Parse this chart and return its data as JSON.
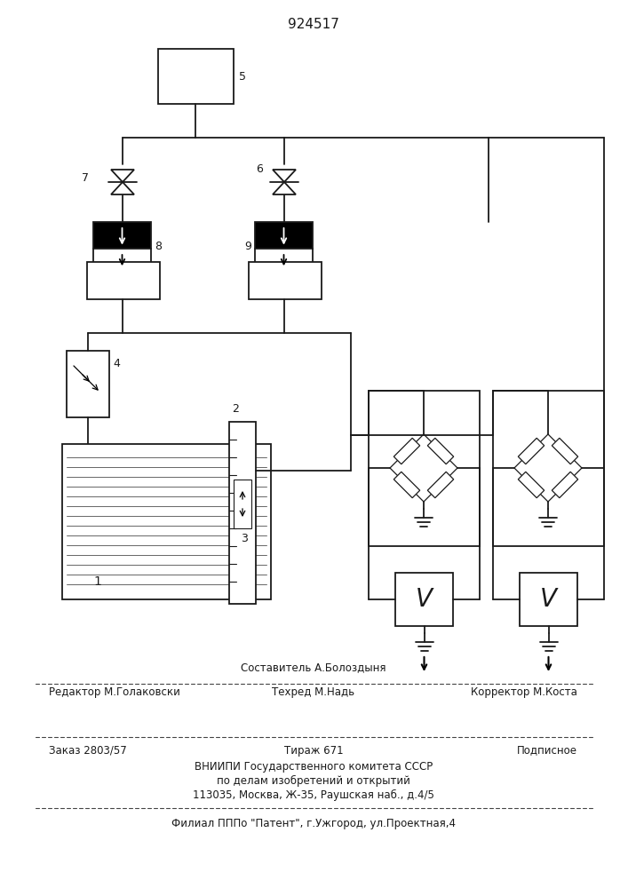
{
  "title": "924517",
  "bg_color": "#ffffff",
  "line_color": "#1a1a1a",
  "lw": 1.3,
  "footer_above_center": "Составитель А.Болоздыня",
  "footer_line1_left": "Редактор М.Голаковски",
  "footer_line1_center": "Техред М.Надь",
  "footer_line1_right": "Корректор М.Коста",
  "footer_line2_left": "Заказ 2803/57",
  "footer_line2_center": "Тираж 671",
  "footer_line2_right": "Подписное",
  "footer_line3": "ВНИИПИ Государственного комитета СССР",
  "footer_line4": "по делам изобретений и открытий",
  "footer_line5": "113035, Москва, Ж-35, Раушская наб., д.4/5",
  "footer_line6": "Филиал ПППо \"Патент\", г.Ужгород, ул.Проектная,4",
  "labels": {
    "1": "1",
    "2": "2",
    "3": "3",
    "4": "4",
    "5": "5",
    "6": "6",
    "7": "7",
    "8": "8",
    "9": "9"
  }
}
